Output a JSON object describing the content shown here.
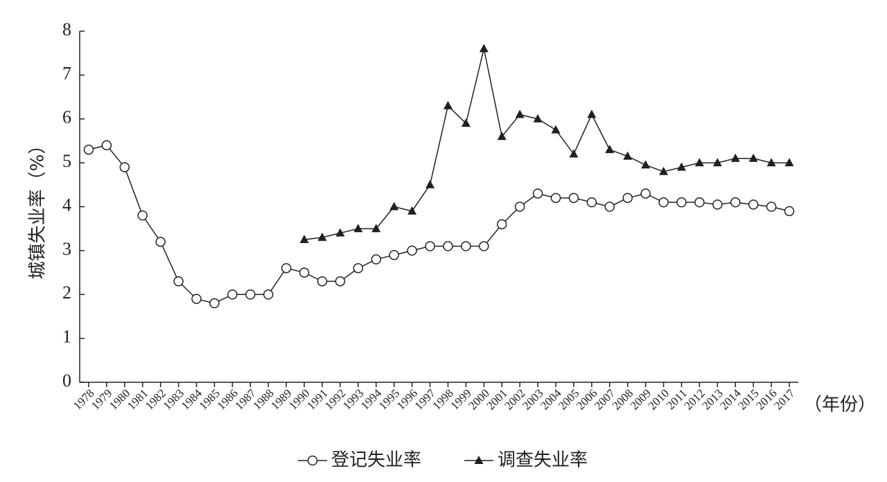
{
  "chart_data": {
    "type": "line",
    "y_label": "城镇失业率（%）",
    "x_label": "（年份）",
    "x": [
      1978,
      1979,
      1980,
      1981,
      1982,
      1983,
      1984,
      1985,
      1986,
      1987,
      1988,
      1989,
      1990,
      1991,
      1992,
      1993,
      1994,
      1995,
      1996,
      1997,
      1998,
      1999,
      2000,
      2001,
      2002,
      2003,
      2004,
      2005,
      2006,
      2007,
      2008,
      2009,
      2010,
      2011,
      2012,
      2013,
      2014,
      2015,
      2016,
      2017
    ],
    "xlim": [
      1977.5,
      2017.5
    ],
    "ylim": [
      0,
      8
    ],
    "yticks": [
      0,
      1,
      2,
      3,
      4,
      5,
      6,
      7,
      8
    ],
    "series": [
      {
        "name": "登记失业率",
        "color": "#231f20",
        "marker": "circle",
        "values": [
          5.3,
          5.4,
          4.9,
          3.8,
          3.2,
          2.3,
          1.9,
          1.8,
          2.0,
          2.0,
          2.0,
          2.6,
          2.5,
          2.3,
          2.3,
          2.6,
          2.8,
          2.9,
          3.0,
          3.1,
          3.1,
          3.1,
          3.1,
          3.6,
          4.0,
          4.3,
          4.2,
          4.2,
          4.1,
          4.0,
          4.2,
          4.3,
          4.1,
          4.1,
          4.1,
          4.05,
          4.1,
          4.05,
          4.0,
          3.9
        ]
      },
      {
        "name": "调查失业率",
        "color": "#231f20",
        "marker": "triangle",
        "values": [
          null,
          null,
          null,
          null,
          null,
          null,
          null,
          null,
          null,
          null,
          null,
          null,
          3.25,
          3.3,
          3.4,
          3.5,
          3.5,
          4.0,
          3.9,
          4.5,
          6.3,
          5.9,
          7.6,
          5.6,
          6.1,
          6.0,
          5.75,
          5.2,
          6.1,
          5.3,
          5.15,
          4.95,
          4.8,
          4.9,
          5.0,
          5.0,
          5.1,
          5.1,
          5.0,
          5.0
        ]
      }
    ]
  }
}
